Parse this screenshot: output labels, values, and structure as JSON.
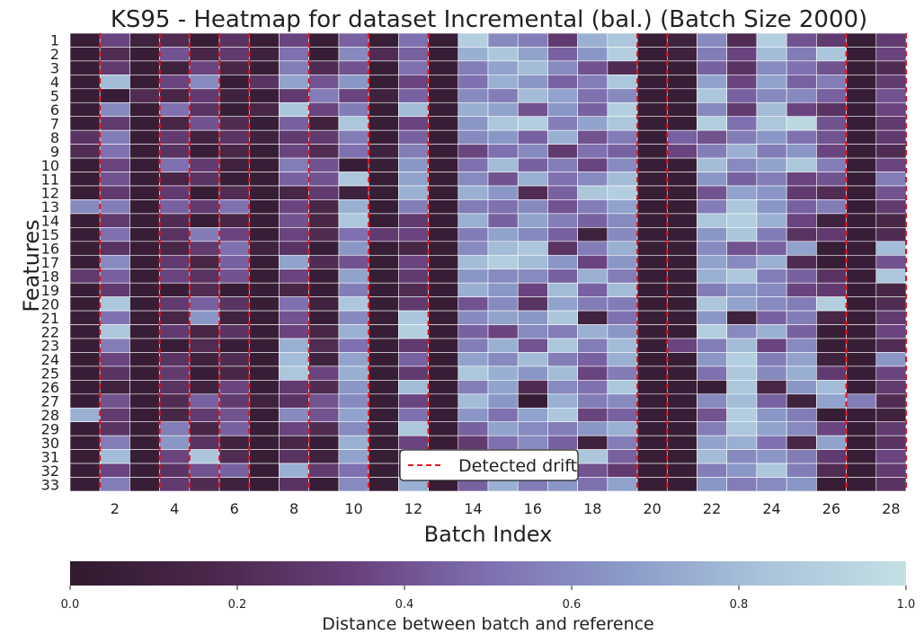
{
  "chart_data": {
    "type": "heatmap",
    "title": "KS95 - Heatmap for dataset Incremental (bal.) (Batch Size 2000)",
    "xlabel": "Batch Index",
    "ylabel": "Features",
    "x_tick_labels": [
      "2",
      "4",
      "6",
      "8",
      "10",
      "12",
      "14",
      "16",
      "18",
      "20",
      "22",
      "24",
      "26",
      "28"
    ],
    "x_tick_batches": [
      2,
      4,
      6,
      8,
      10,
      12,
      14,
      16,
      18,
      20,
      22,
      24,
      26,
      28
    ],
    "y_tick_labels": [
      "1",
      "2",
      "3",
      "4",
      "5",
      "6",
      "7",
      "8",
      "9",
      "10",
      "11",
      "12",
      "13",
      "14",
      "15",
      "16",
      "17",
      "18",
      "19",
      "20",
      "21",
      "22",
      "23",
      "24",
      "25",
      "26",
      "27",
      "28",
      "29",
      "30",
      "31",
      "32",
      "33"
    ],
    "n_batches": 28,
    "n_features": 33,
    "colorbar": {
      "label": "Distance between batch and reference",
      "ticks": [
        0.0,
        0.2,
        0.4,
        0.6,
        0.8,
        1.0
      ],
      "tick_labels": [
        "0.0",
        "0.2",
        "0.4",
        "0.6",
        "0.8",
        "1.0"
      ],
      "vmin": 0.0,
      "vmax": 1.0
    },
    "colormap_stops": [
      "#2f1a2e",
      "#4a2749",
      "#673f7a",
      "#7f70b0",
      "#8b9bc8",
      "#a9c4db",
      "#c3e0e4"
    ],
    "drift_color": "#e8141b",
    "legend": {
      "label": "Detected drift",
      "placement": "lower-center"
    },
    "detected_drift_batches": [
      1.5,
      3.5,
      4.5,
      5.5,
      6.5,
      8.5,
      10.5,
      12.5,
      19.5,
      20.5,
      26.5,
      28.5
    ],
    "values": [
      [
        0.05,
        0.35,
        0.1,
        0.2,
        0.05,
        0.25,
        0.05,
        0.35,
        0.05,
        0.45,
        0.05,
        0.5,
        0.05,
        0.9,
        0.6,
        0.55,
        0.3,
        0.75,
        0.85,
        0.05,
        0.1,
        0.6,
        0.2,
        0.9,
        0.4,
        0.3,
        0.05,
        0.3
      ],
      [
        0.05,
        0.2,
        0.05,
        0.4,
        0.15,
        0.3,
        0.1,
        0.5,
        0.05,
        0.6,
        0.2,
        0.45,
        0.05,
        0.75,
        0.85,
        0.7,
        0.45,
        0.65,
        0.9,
        0.05,
        0.1,
        0.55,
        0.35,
        0.8,
        0.55,
        0.85,
        0.05,
        0.35
      ],
      [
        0.05,
        0.3,
        0.05,
        0.1,
        0.35,
        0.15,
        0.05,
        0.55,
        0.2,
        0.4,
        0.05,
        0.5,
        0.05,
        0.55,
        0.7,
        0.8,
        0.6,
        0.4,
        0.2,
        0.05,
        0.05,
        0.45,
        0.25,
        0.6,
        0.5,
        0.4,
        0.05,
        0.2
      ],
      [
        0.05,
        0.8,
        0.05,
        0.35,
        0.6,
        0.05,
        0.25,
        0.7,
        0.4,
        0.65,
        0.05,
        0.35,
        0.05,
        0.5,
        0.75,
        0.65,
        0.45,
        0.55,
        0.85,
        0.05,
        0.05,
        0.7,
        0.35,
        0.7,
        0.45,
        0.55,
        0.05,
        0.3
      ],
      [
        0.05,
        0.05,
        0.2,
        0.15,
        0.3,
        0.1,
        0.05,
        0.3,
        0.55,
        0.35,
        0.1,
        0.45,
        0.05,
        0.6,
        0.55,
        0.8,
        0.7,
        0.5,
        0.6,
        0.05,
        0.05,
        0.85,
        0.45,
        0.6,
        0.6,
        0.45,
        0.05,
        0.4
      ],
      [
        0.05,
        0.6,
        0.05,
        0.5,
        0.25,
        0.05,
        0.15,
        0.85,
        0.35,
        0.55,
        0.05,
        0.8,
        0.05,
        0.75,
        0.7,
        0.4,
        0.65,
        0.45,
        0.9,
        0.05,
        0.05,
        0.6,
        0.3,
        0.8,
        0.35,
        0.25,
        0.05,
        0.35
      ],
      [
        0.05,
        0.3,
        0.05,
        0.15,
        0.4,
        0.2,
        0.05,
        0.45,
        0.1,
        0.85,
        0.05,
        0.35,
        0.05,
        0.65,
        0.85,
        0.9,
        0.55,
        0.7,
        0.85,
        0.05,
        0.05,
        0.9,
        0.5,
        0.85,
        0.95,
        0.4,
        0.05,
        0.3
      ],
      [
        0.25,
        0.55,
        0.05,
        0.3,
        0.1,
        0.25,
        0.1,
        0.3,
        0.3,
        0.55,
        0.05,
        0.45,
        0.05,
        0.6,
        0.65,
        0.45,
        0.75,
        0.4,
        0.55,
        0.05,
        0.45,
        0.4,
        0.55,
        0.65,
        0.5,
        0.4,
        0.05,
        0.3
      ],
      [
        0.2,
        0.5,
        0.05,
        0.25,
        0.05,
        0.15,
        0.05,
        0.35,
        0.2,
        0.5,
        0.1,
        0.55,
        0.05,
        0.35,
        0.5,
        0.6,
        0.3,
        0.5,
        0.45,
        0.05,
        0.35,
        0.55,
        0.75,
        0.55,
        0.65,
        0.35,
        0.05,
        0.2
      ],
      [
        0.05,
        0.35,
        0.05,
        0.5,
        0.3,
        0.1,
        0.05,
        0.55,
        0.4,
        0.05,
        0.05,
        0.65,
        0.05,
        0.5,
        0.8,
        0.45,
        0.55,
        0.35,
        0.6,
        0.05,
        0.05,
        0.8,
        0.6,
        0.7,
        0.85,
        0.55,
        0.05,
        0.35
      ],
      [
        0.05,
        0.4,
        0.05,
        0.15,
        0.25,
        0.05,
        0.05,
        0.45,
        0.4,
        0.85,
        0.05,
        0.7,
        0.05,
        0.6,
        0.4,
        0.75,
        0.5,
        0.6,
        0.8,
        0.05,
        0.05,
        0.65,
        0.45,
        0.55,
        0.35,
        0.4,
        0.05,
        0.55
      ],
      [
        0.05,
        0.3,
        0.05,
        0.3,
        0.05,
        0.2,
        0.05,
        0.15,
        0.3,
        0.1,
        0.05,
        0.75,
        0.05,
        0.75,
        0.65,
        0.2,
        0.45,
        0.85,
        0.9,
        0.05,
        0.05,
        0.4,
        0.7,
        0.65,
        0.3,
        0.2,
        0.05,
        0.4
      ],
      [
        0.6,
        0.55,
        0.05,
        0.45,
        0.3,
        0.5,
        0.05,
        0.35,
        0.15,
        0.75,
        0.05,
        0.55,
        0.05,
        0.55,
        0.5,
        0.6,
        0.4,
        0.55,
        0.7,
        0.05,
        0.05,
        0.55,
        0.85,
        0.65,
        0.45,
        0.55,
        0.05,
        0.3
      ],
      [
        0.05,
        0.3,
        0.05,
        0.2,
        0.05,
        0.15,
        0.05,
        0.4,
        0.15,
        0.85,
        0.05,
        0.3,
        0.05,
        0.75,
        0.45,
        0.7,
        0.55,
        0.45,
        0.6,
        0.05,
        0.05,
        0.85,
        0.9,
        0.75,
        0.35,
        0.1,
        0.05,
        0.15
      ],
      [
        0.05,
        0.5,
        0.05,
        0.25,
        0.55,
        0.35,
        0.05,
        0.35,
        0.2,
        0.5,
        0.3,
        0.35,
        0.05,
        0.55,
        0.7,
        0.6,
        0.45,
        0.1,
        0.6,
        0.05,
        0.05,
        0.65,
        0.85,
        0.55,
        0.25,
        0.3,
        0.05,
        0.2
      ],
      [
        0.05,
        0.25,
        0.05,
        0.15,
        0.3,
        0.5,
        0.1,
        0.25,
        0.05,
        0.65,
        0.05,
        0.15,
        0.05,
        0.6,
        0.8,
        0.85,
        0.25,
        0.55,
        0.75,
        0.05,
        0.05,
        0.6,
        0.4,
        0.45,
        0.7,
        0.05,
        0.05,
        0.8
      ],
      [
        0.05,
        0.6,
        0.05,
        0.3,
        0.15,
        0.45,
        0.05,
        0.7,
        0.2,
        0.4,
        0.05,
        0.35,
        0.05,
        0.8,
        0.9,
        0.8,
        0.65,
        0.35,
        0.65,
        0.05,
        0.05,
        0.7,
        0.6,
        0.75,
        0.2,
        0.05,
        0.05,
        0.4
      ],
      [
        0.3,
        0.45,
        0.05,
        0.35,
        0.25,
        0.4,
        0.05,
        0.35,
        0.05,
        0.7,
        0.05,
        0.3,
        0.05,
        0.65,
        0.6,
        0.6,
        0.45,
        0.75,
        0.55,
        0.05,
        0.05,
        0.75,
        0.85,
        0.55,
        0.45,
        0.25,
        0.05,
        0.85
      ],
      [
        0.05,
        0.3,
        0.05,
        0.05,
        0.2,
        0.05,
        0.05,
        0.15,
        0.05,
        0.55,
        0.05,
        0.2,
        0.05,
        0.75,
        0.65,
        0.35,
        0.8,
        0.45,
        0.8,
        0.05,
        0.05,
        0.55,
        0.65,
        0.6,
        0.35,
        0.3,
        0.05,
        0.15
      ],
      [
        0.05,
        0.85,
        0.05,
        0.3,
        0.45,
        0.25,
        0.05,
        0.5,
        0.1,
        0.85,
        0.05,
        0.3,
        0.05,
        0.4,
        0.6,
        0.25,
        0.7,
        0.55,
        0.55,
        0.05,
        0.05,
        0.85,
        0.7,
        0.6,
        0.55,
        0.9,
        0.05,
        0.2
      ],
      [
        0.05,
        0.5,
        0.05,
        0.15,
        0.65,
        0.1,
        0.05,
        0.4,
        0.05,
        0.6,
        0.05,
        0.85,
        0.05,
        0.6,
        0.7,
        0.65,
        0.85,
        0.1,
        0.5,
        0.05,
        0.05,
        0.65,
        0.1,
        0.45,
        0.55,
        0.15,
        0.05,
        0.3
      ],
      [
        0.05,
        0.85,
        0.05,
        0.3,
        0.15,
        0.25,
        0.05,
        0.35,
        0.15,
        0.75,
        0.05,
        0.9,
        0.05,
        0.45,
        0.35,
        0.6,
        0.55,
        0.75,
        0.65,
        0.05,
        0.05,
        0.9,
        0.6,
        0.75,
        0.45,
        0.05,
        0.05,
        0.35
      ],
      [
        0.05,
        0.55,
        0.05,
        0.05,
        0.2,
        0.05,
        0.05,
        0.75,
        0.2,
        0.5,
        0.05,
        0.3,
        0.05,
        0.55,
        0.75,
        0.4,
        0.85,
        0.55,
        0.8,
        0.05,
        0.35,
        0.55,
        0.8,
        0.35,
        0.6,
        0.05,
        0.05,
        0.2
      ],
      [
        0.05,
        0.35,
        0.05,
        0.25,
        0.1,
        0.2,
        0.05,
        0.8,
        0.1,
        0.7,
        0.05,
        0.45,
        0.05,
        0.7,
        0.6,
        0.8,
        0.55,
        0.45,
        0.75,
        0.05,
        0.05,
        0.65,
        0.9,
        0.55,
        0.7,
        0.1,
        0.05,
        0.65
      ],
      [
        0.05,
        0.25,
        0.05,
        0.3,
        0.05,
        0.15,
        0.05,
        0.85,
        0.35,
        0.75,
        0.05,
        0.3,
        0.05,
        0.85,
        0.75,
        0.65,
        0.8,
        0.35,
        0.55,
        0.05,
        0.05,
        0.5,
        0.85,
        0.6,
        0.75,
        0.3,
        0.05,
        0.35
      ],
      [
        0.05,
        0.1,
        0.05,
        0.25,
        0.1,
        0.35,
        0.05,
        0.3,
        0.2,
        0.65,
        0.05,
        0.8,
        0.05,
        0.55,
        0.7,
        0.2,
        0.6,
        0.5,
        0.85,
        0.05,
        0.05,
        0.05,
        0.85,
        0.15,
        0.65,
        0.8,
        0.05,
        0.3
      ],
      [
        0.05,
        0.4,
        0.05,
        0.2,
        0.45,
        0.3,
        0.1,
        0.25,
        0.4,
        0.6,
        0.05,
        0.35,
        0.05,
        0.8,
        0.65,
        0.05,
        0.75,
        0.55,
        0.6,
        0.05,
        0.05,
        0.6,
        0.8,
        0.45,
        0.1,
        0.7,
        0.55,
        0.2
      ],
      [
        0.75,
        0.3,
        0.05,
        0.15,
        0.3,
        0.4,
        0.05,
        0.6,
        0.4,
        0.7,
        0.05,
        0.5,
        0.05,
        0.65,
        0.5,
        0.7,
        0.85,
        0.35,
        0.45,
        0.05,
        0.05,
        0.4,
        0.9,
        0.65,
        0.55,
        0.05,
        0.05,
        0.1
      ],
      [
        0.05,
        0.25,
        0.05,
        0.55,
        0.15,
        0.45,
        0.05,
        0.35,
        0.2,
        0.6,
        0.05,
        0.85,
        0.05,
        0.45,
        0.7,
        0.6,
        0.55,
        0.65,
        0.75,
        0.05,
        0.05,
        0.55,
        0.85,
        0.7,
        0.6,
        0.35,
        0.05,
        0.3
      ],
      [
        0.05,
        0.55,
        0.05,
        0.65,
        0.25,
        0.1,
        0.05,
        0.15,
        0.05,
        0.75,
        0.05,
        0.35,
        0.05,
        0.3,
        0.5,
        0.6,
        0.45,
        0.1,
        0.55,
        0.05,
        0.05,
        0.7,
        0.75,
        0.5,
        0.15,
        0.7,
        0.05,
        0.25
      ],
      [
        0.05,
        0.8,
        0.05,
        0.35,
        0.85,
        0.2,
        0.05,
        0.25,
        0.1,
        0.7,
        0.05,
        0.4,
        0.05,
        0.55,
        0.65,
        0.6,
        0.35,
        0.85,
        0.45,
        0.05,
        0.05,
        0.8,
        0.6,
        0.65,
        0.55,
        0.3,
        0.05,
        0.35
      ],
      [
        0.05,
        0.35,
        0.05,
        0.25,
        0.4,
        0.45,
        0.05,
        0.75,
        0.3,
        0.5,
        0.05,
        0.15,
        0.05,
        0.6,
        0.45,
        0.7,
        0.55,
        0.4,
        0.3,
        0.05,
        0.05,
        0.55,
        0.65,
        0.85,
        0.55,
        0.2,
        0.05,
        0.3
      ],
      [
        0.05,
        0.55,
        0.05,
        0.3,
        0.2,
        0.1,
        0.05,
        0.25,
        0.05,
        0.6,
        0.05,
        0.75,
        0.05,
        0.45,
        0.75,
        0.55,
        0.65,
        0.5,
        0.7,
        0.05,
        0.05,
        0.65,
        0.55,
        0.6,
        0.65,
        0.05,
        0.05,
        0.25
      ]
    ]
  }
}
